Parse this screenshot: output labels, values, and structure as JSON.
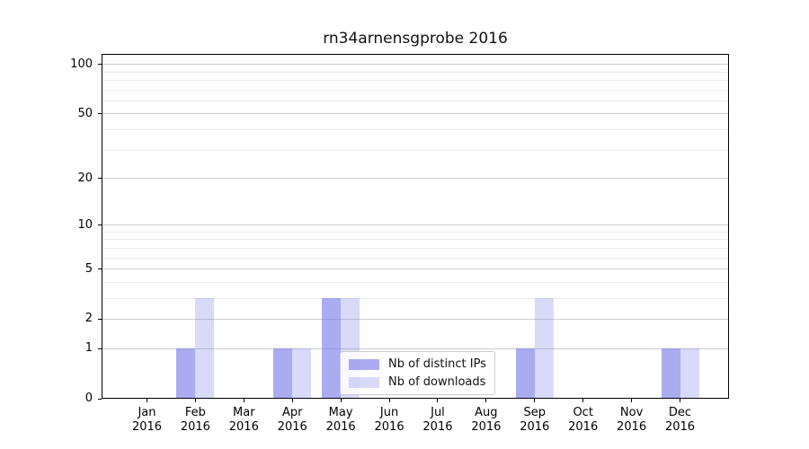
{
  "figure": {
    "background": "#ffffff"
  },
  "chart_data": {
    "type": "bar",
    "title": "rn34arnensgprobe 2016",
    "categories": [
      "Jan",
      "Feb",
      "Mar",
      "Apr",
      "May",
      "Jun",
      "Jul",
      "Aug",
      "Sep",
      "Oct",
      "Nov",
      "Dec"
    ],
    "x_tick_year": "2016",
    "series": [
      {
        "name": "Nb of distinct IPs",
        "color": "#6666e6",
        "alpha": 0.55,
        "values": [
          0,
          1,
          0,
          1,
          3,
          0,
          0,
          0,
          1,
          0,
          0,
          1
        ]
      },
      {
        "name": "Nb of downloads",
        "color": "#6666e6",
        "alpha": 0.25,
        "values": [
          0,
          3,
          0,
          1,
          3,
          0,
          0,
          0,
          3,
          0,
          0,
          1
        ]
      }
    ],
    "yscale": "log1p",
    "ylim": [
      0,
      116
    ],
    "y_major_ticks": [
      0,
      1,
      2,
      5,
      10,
      20,
      50,
      100
    ],
    "y_minor_ticks": [
      3,
      4,
      6,
      7,
      8,
      9,
      30,
      40,
      60,
      70,
      80,
      90
    ],
    "grid": true,
    "legend_position": "lower-center",
    "legend_labels": [
      "Nb of distinct IPs",
      "Nb of downloads"
    ]
  },
  "colors": {
    "bar_distinct_ips_effective": "#a9a9f1",
    "bar_downloads_effective": "#d8d8f8",
    "grid_major": "#cccccc",
    "grid_minor": "#ebebeb",
    "axis": "#000000",
    "tick_label": "#000000"
  }
}
